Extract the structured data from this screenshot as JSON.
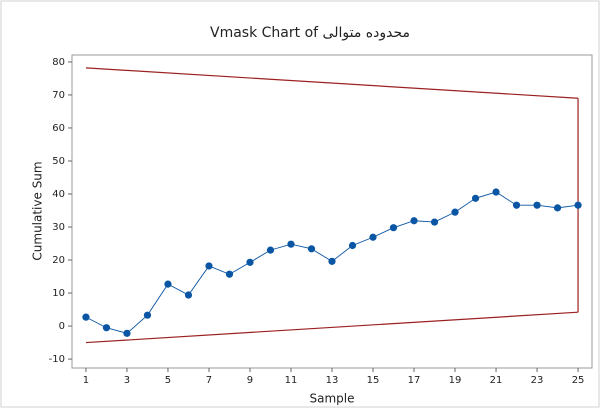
{
  "chart_data": {
    "type": "line",
    "title": "Vmask Chart of محدوده متوالی",
    "x_label": "Sample",
    "y_label": "Cumulative Sum",
    "x": [
      1,
      2,
      3,
      4,
      5,
      6,
      7,
      8,
      9,
      10,
      11,
      12,
      13,
      14,
      15,
      16,
      17,
      18,
      19,
      20,
      21,
      22,
      23,
      24,
      25
    ],
    "series": [
      {
        "color": "#0b56a4",
        "values": [
          2.7,
          -0.5,
          -2.2,
          3.3,
          12.7,
          9.4,
          18.2,
          15.7,
          19.3,
          23.0,
          24.8,
          23.4,
          19.6,
          24.4,
          26.9,
          29.8,
          31.9,
          31.5,
          34.5,
          38.7,
          40.6,
          36.6,
          36.6,
          35.8,
          36.6
        ]
      }
    ],
    "vmask": {
      "color": "#9b2020",
      "x": [
        1,
        25
      ],
      "upper": [
        78.2,
        69.0
      ],
      "lower": [
        -5.0,
        4.2
      ]
    },
    "xlim": [
      0.32,
      25.68
    ],
    "xticks": [
      1,
      3,
      5,
      7,
      9,
      11,
      13,
      15,
      17,
      19,
      21,
      23,
      25
    ],
    "ylim": [
      -12.7,
      82.1
    ],
    "yticks": [
      -10,
      0,
      10,
      20,
      30,
      40,
      50,
      60,
      70,
      80
    ]
  }
}
